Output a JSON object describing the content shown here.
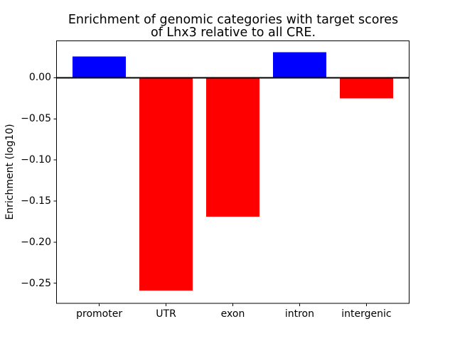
{
  "figure": {
    "background": "#ffffff",
    "text_color": "#000000",
    "axis_color": "#000000"
  },
  "chart_data": {
    "type": "bar",
    "title": "Enrichment of genomic categories with target scores\nof Lhx3 relative to all CRE.",
    "xlabel": "",
    "ylabel": "Enrichment (log10)",
    "categories": [
      "promoter",
      "UTR",
      "exon",
      "intron",
      "intergenic"
    ],
    "values": [
      0.026,
      -0.259,
      -0.169,
      0.031,
      -0.025
    ],
    "bar_colors": [
      "#0000ff",
      "#ff0000",
      "#ff0000",
      "#0000ff",
      "#ff0000"
    ],
    "positive_color": "#0000ff",
    "negative_color": "#ff0000",
    "yticks": [
      0.0,
      -0.05,
      -0.1,
      -0.15,
      -0.2,
      -0.25
    ],
    "ytick_labels": [
      "0.00",
      "−0.05",
      "−0.10",
      "−0.15",
      "−0.20",
      "−0.25"
    ],
    "ylim": [
      -0.2745,
      0.0449
    ],
    "xlim": [
      -0.64,
      4.64
    ],
    "bar_width": 0.8,
    "zero_line": true,
    "grid": false,
    "legend": null
  }
}
